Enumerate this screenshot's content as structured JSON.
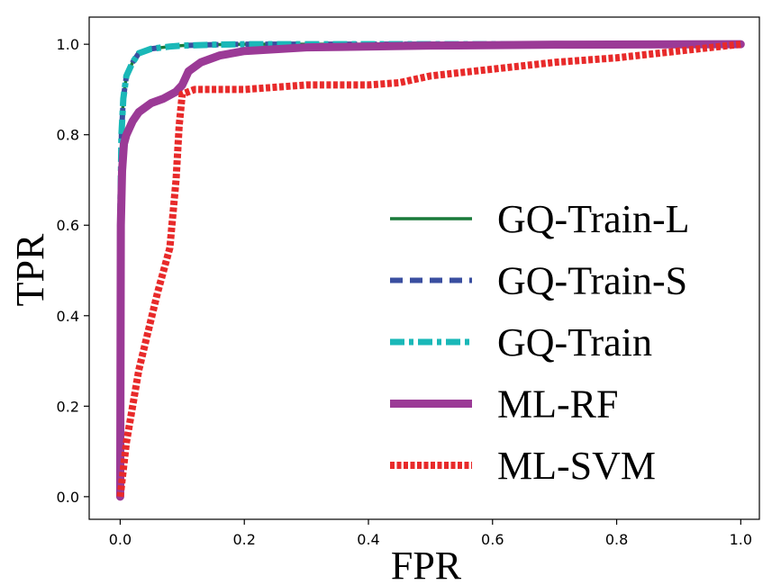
{
  "chart_data": {
    "type": "line",
    "title": "",
    "xlabel": "FPR",
    "ylabel": "TPR",
    "xlim": [
      -0.05,
      1.03
    ],
    "ylim": [
      -0.05,
      1.06
    ],
    "grid": false,
    "legend_position": "center-right",
    "xticks": [
      {
        "value": 0.0,
        "label": "0.0"
      },
      {
        "value": 0.2,
        "label": "0.2"
      },
      {
        "value": 0.4,
        "label": "0.4"
      },
      {
        "value": 0.6,
        "label": "0.6"
      },
      {
        "value": 0.8,
        "label": "0.8"
      },
      {
        "value": 1.0,
        "label": "1.0"
      }
    ],
    "yticks": [
      {
        "value": 0.0,
        "label": "0.0"
      },
      {
        "value": 0.2,
        "label": "0.2"
      },
      {
        "value": 0.4,
        "label": "0.4"
      },
      {
        "value": 0.6,
        "label": "0.6"
      },
      {
        "value": 0.8,
        "label": "0.8"
      },
      {
        "value": 1.0,
        "label": "1.0"
      }
    ],
    "series": [
      {
        "name": "GQ-Train-L",
        "color": "#1a7a3a",
        "style": "solid",
        "x": [
          0.0,
          0.0,
          0.002,
          0.005,
          0.01,
          0.02,
          0.03,
          0.05,
          0.08,
          0.1,
          0.15,
          0.2,
          0.3,
          0.5,
          1.0
        ],
        "y": [
          0.0,
          0.6,
          0.8,
          0.88,
          0.93,
          0.96,
          0.98,
          0.99,
          0.995,
          0.997,
          0.999,
          1.0,
          1.0,
          1.0,
          1.0
        ]
      },
      {
        "name": "GQ-Train-S",
        "color": "#3a4fa0",
        "style": "dashed",
        "x": [
          0.0,
          0.0,
          0.002,
          0.005,
          0.01,
          0.02,
          0.03,
          0.05,
          0.08,
          0.1,
          0.15,
          0.2,
          0.3,
          0.5,
          1.0
        ],
        "y": [
          0.0,
          0.6,
          0.8,
          0.88,
          0.93,
          0.96,
          0.98,
          0.99,
          0.995,
          0.997,
          0.999,
          1.0,
          1.0,
          1.0,
          1.0
        ]
      },
      {
        "name": "GQ-Train",
        "color": "#1ab8b8",
        "style": "dashdot",
        "x": [
          0.0,
          0.0,
          0.002,
          0.005,
          0.01,
          0.02,
          0.03,
          0.05,
          0.08,
          0.1,
          0.15,
          0.2,
          0.3,
          0.5,
          1.0
        ],
        "y": [
          0.0,
          0.6,
          0.8,
          0.88,
          0.93,
          0.96,
          0.98,
          0.99,
          0.995,
          0.997,
          0.999,
          1.0,
          1.0,
          1.0,
          1.0
        ]
      },
      {
        "name": "ML-RF",
        "color": "#9b3a96",
        "style": "solid-thick",
        "x": [
          0.0,
          0.001,
          0.003,
          0.006,
          0.01,
          0.02,
          0.03,
          0.05,
          0.07,
          0.09,
          0.1,
          0.11,
          0.13,
          0.16,
          0.2,
          0.3,
          0.5,
          0.7,
          1.0
        ],
        "y": [
          0.0,
          0.6,
          0.72,
          0.78,
          0.8,
          0.83,
          0.85,
          0.87,
          0.88,
          0.895,
          0.91,
          0.94,
          0.96,
          0.975,
          0.985,
          0.993,
          0.997,
          0.999,
          1.0
        ],
        "thick": true
      },
      {
        "name": "ML-SVM",
        "color": "#e82a2a",
        "style": "dotted",
        "x": [
          0.0,
          0.01,
          0.03,
          0.06,
          0.08,
          0.09,
          0.095,
          0.1,
          0.12,
          0.15,
          0.2,
          0.3,
          0.4,
          0.45,
          0.5,
          0.6,
          0.7,
          0.8,
          0.9,
          1.0
        ],
        "y": [
          0.0,
          0.12,
          0.28,
          0.45,
          0.55,
          0.7,
          0.82,
          0.89,
          0.9,
          0.9,
          0.9,
          0.91,
          0.91,
          0.915,
          0.93,
          0.945,
          0.96,
          0.97,
          0.985,
          1.0
        ]
      }
    ]
  }
}
